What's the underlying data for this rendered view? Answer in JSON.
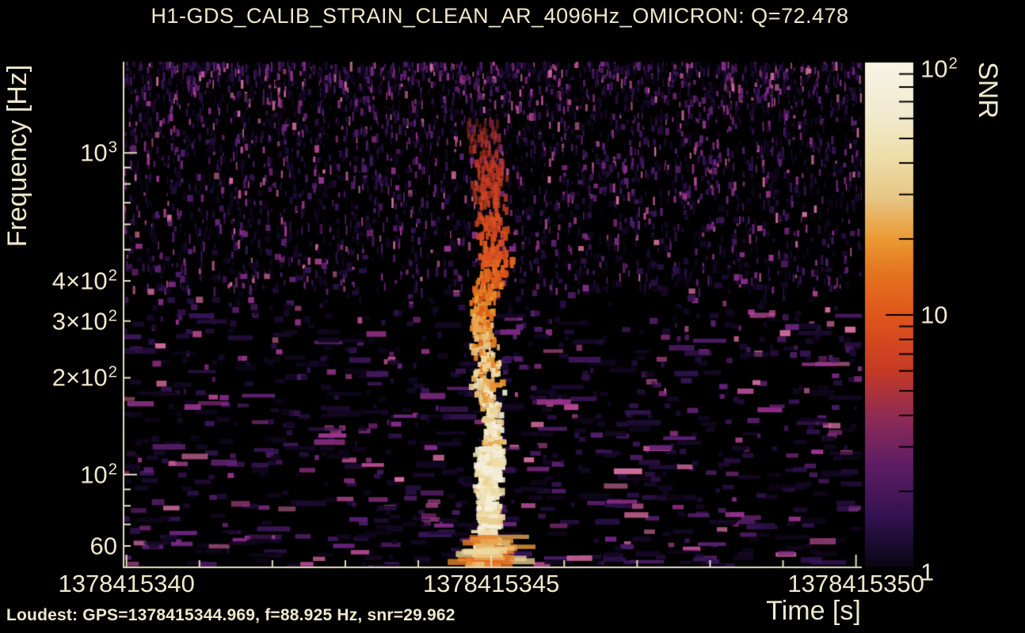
{
  "title": "H1-GDS_CALIB_STRAIN_CLEAN_AR_4096Hz_OMICRON: Q=72.478",
  "footer": {
    "loudest": "Loudest: GPS=1378415344.969, f=88.925 Hz, snr=29.962"
  },
  "axes": {
    "x_label": "Time [s]",
    "y_label": "Frequency [Hz]"
  },
  "colorbar": {
    "label": "SNR"
  },
  "colors": {
    "background": "#000000",
    "text": "#efe8cd",
    "axis": "#e6dfc2",
    "colorbar_tick": "#000000"
  },
  "chart_data": {
    "type": "heatmap",
    "subtype": "omicron_q_transform_spectrogram",
    "title": "H1-GDS_CALIB_STRAIN_CLEAN_AR_4096Hz_OMICRON: Q=72.478",
    "q_value": 72.478,
    "xlabel": "Time [s]",
    "ylabel": "Frequency [Hz]",
    "color_label": "SNR",
    "x_scale": "linear_gps_seconds",
    "y_scale": "log",
    "color_scale": "log",
    "xlim": [
      1378415339.96,
      1378415350.08
    ],
    "ylim_hz": [
      51.5,
      1920
    ],
    "snr_lim": [
      1,
      100
    ],
    "x_major_ticks": [
      {
        "t": 1378415340,
        "label": "1378415340"
      },
      {
        "t": 1378415345,
        "label": "1378415345"
      },
      {
        "t": 1378415350,
        "label": "1378415350"
      }
    ],
    "x_minor_ticks": [
      1378415341,
      1378415342,
      1378415343,
      1378415344,
      1378415346,
      1378415347,
      1378415348,
      1378415349
    ],
    "y_tick_labels": [
      {
        "f": 1000,
        "base": "10",
        "sup": "3"
      },
      {
        "f": 400,
        "base": "4×10",
        "sup": "2"
      },
      {
        "f": 300,
        "base": "3×10",
        "sup": "2"
      },
      {
        "f": 200,
        "base": "2×10",
        "sup": "2"
      },
      {
        "f": 100,
        "base": "10",
        "sup": "2"
      },
      {
        "f": 60,
        "base": "60"
      }
    ],
    "y_major_ticks": [
      100,
      1000
    ],
    "y_minor_ticks": [
      60,
      70,
      80,
      90,
      200,
      300,
      400,
      500,
      600,
      700,
      800,
      900
    ],
    "colorbar_tick_labels": [
      {
        "snr": 100,
        "base": "10",
        "sup": "2"
      },
      {
        "snr": 10,
        "base": "10"
      },
      {
        "snr": 1,
        "base": "1"
      }
    ],
    "colorbar_major_ticks": [
      10
    ],
    "colorbar_minor_ticks": [
      2,
      3,
      4,
      5,
      6,
      7,
      8,
      9,
      20,
      30,
      40,
      50,
      60,
      70,
      80,
      90
    ],
    "loudest": {
      "gps": 1378415344.969,
      "frequency_hz": 88.925,
      "snr": 29.962
    },
    "glitch": {
      "center_gps": 1378415344.969,
      "peak_frequency_hz": 88.925,
      "peak_snr": 29.962,
      "freq_extent_hz": [
        52,
        1250
      ],
      "brightest_band_hz": [
        55,
        120
      ]
    },
    "colormap_stops": [
      [
        0.0,
        "#0a0512"
      ],
      [
        0.03,
        "#140a26"
      ],
      [
        0.1,
        "#331250"
      ],
      [
        0.2,
        "#5c1d64"
      ],
      [
        0.29,
        "#8a2a58"
      ],
      [
        0.39,
        "#c63a25"
      ],
      [
        0.5,
        "#e0561d"
      ],
      [
        0.58,
        "#e3731f"
      ],
      [
        0.65,
        "#eb9a33"
      ],
      [
        0.73,
        "#e6c585"
      ],
      [
        0.81,
        "#eedea8"
      ],
      [
        0.9,
        "#f2ead0"
      ],
      [
        1.0,
        "#f8f5e6"
      ]
    ],
    "noise_palette": [
      "#130722",
      "#1d0b33",
      "#2a1046",
      "#381457",
      "#471a66",
      "#581f72",
      "#6b2480",
      "#832b88",
      "#9c3390",
      "#b94b94",
      "#d06a9c"
    ],
    "render": {
      "seed": 7,
      "rain_count": 3000,
      "speckle_count": 1600,
      "bottom_blob_count": 260,
      "glitch_blob_count": 950,
      "glitch_core_count": 210,
      "glitch_smear_count": 45
    }
  }
}
